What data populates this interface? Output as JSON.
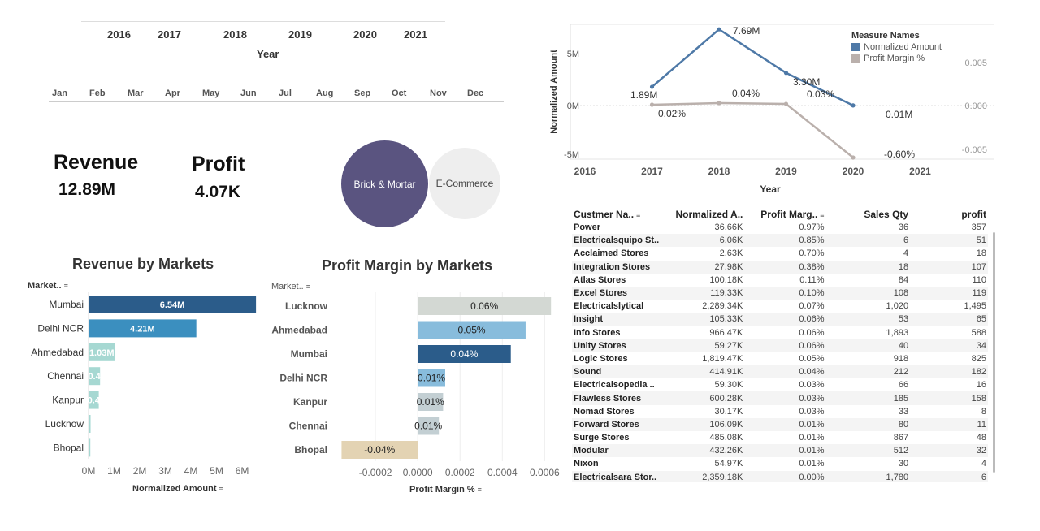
{
  "year_filter": {
    "years": [
      "2016",
      "2017",
      "2018",
      "2019",
      "2020",
      "2021"
    ],
    "title": "Year"
  },
  "month_filter": {
    "months": [
      "Jan",
      "Feb",
      "Mar",
      "Apr",
      "May",
      "Jun",
      "Jul",
      "Aug",
      "Sep",
      "Oct",
      "Nov",
      "Dec"
    ]
  },
  "kpis": {
    "revenue_label": "Revenue",
    "revenue_value": "12.89M",
    "profit_label": "Profit",
    "profit_value": "4.07K"
  },
  "channel_buttons": {
    "brick_mortar": "Brick & Mortar",
    "ecommerce": "E-Commerce"
  },
  "colors": {
    "dark_blue": "#2b5c8a",
    "mid_blue": "#3b8fbf",
    "teal_light": "#a6d8d2",
    "line_blue": "#4e79a7",
    "line_gray": "#bab0ac",
    "bubble_purple": "#5a5480",
    "bubble_gray": "#eeeeee"
  },
  "chart_data": [
    {
      "id": "trend",
      "type": "line",
      "x": [
        2017,
        2018,
        2019,
        2020
      ],
      "xlim": [
        2016,
        2021
      ],
      "xticks": [
        "2016",
        "2017",
        "2018",
        "2019",
        "2020",
        "2021"
      ],
      "xlabel": "Year",
      "ylabel": "Normalized Amount",
      "yticks": [
        "5M",
        "0M",
        "-5M"
      ],
      "y2ticks": [
        "0.005",
        "0.000",
        "-0.005"
      ],
      "legend_title": "Measure Names",
      "legend_position": "top-right",
      "series": [
        {
          "name": "Normalized Amount",
          "values": [
            1.89,
            7.69,
            3.3,
            0.01
          ],
          "labels": [
            "1.89M",
            "7.69M",
            "3.30M",
            "0.01M"
          ]
        },
        {
          "name": "Profit Margin %",
          "values": [
            0.02,
            0.04,
            0.03,
            -0.6
          ],
          "labels": [
            "0.02%",
            "0.04%",
            "0.03%",
            "-0.60%"
          ]
        }
      ]
    },
    {
      "id": "revenue_markets",
      "type": "bar",
      "orientation": "horizontal",
      "title": "Revenue by Markets",
      "dim_header": "Market..",
      "xlabel": "Normalized Amount",
      "categories": [
        "Mumbai",
        "Delhi NCR",
        "Ahmedabad",
        "Chennai",
        "Kanpur",
        "Lucknow",
        "Bhopal"
      ],
      "values": [
        6.54,
        4.21,
        1.03,
        0.45,
        0.4,
        0.08,
        0.07
      ],
      "labels": [
        "6.54M",
        "4.21M",
        "1.03M",
        "0.4",
        "0.4",
        "",
        ""
      ],
      "xlim": [
        0,
        6.6
      ],
      "xticks": [
        "0M",
        "1M",
        "2M",
        "3M",
        "4M",
        "5M",
        "6M"
      ]
    },
    {
      "id": "margin_markets",
      "type": "bar",
      "orientation": "horizontal",
      "title": "Profit Margin by Markets",
      "dim_header": "Market..",
      "xlabel": "Profit Margin %",
      "categories": [
        "Lucknow",
        "Ahmedabad",
        "Mumbai",
        "Delhi NCR",
        "Kanpur",
        "Chennai",
        "Bhopal"
      ],
      "values": [
        0.00063,
        0.00051,
        0.00044,
        0.00013,
        0.00012,
        0.0001,
        -0.00036
      ],
      "labels": [
        "0.06%",
        "0.05%",
        "0.04%",
        "0.01%",
        "0.01%",
        "0.01%",
        "-0.04%"
      ],
      "bar_colors": [
        "#d3d8d3",
        "#88bcdc",
        "#2b5c8a",
        "#88bcdc",
        "#c3cfd3",
        "#c3cfd3",
        "#e3d3b3"
      ],
      "xlim": [
        -0.0004,
        0.00066
      ],
      "xticks": [
        "-0.0002",
        "0.0000",
        "0.0002",
        "0.0004",
        "0.0006"
      ]
    }
  ],
  "customer_table": {
    "headers": [
      "Custmer Na..",
      "Normalized A..",
      "Profit Marg..",
      "Sales Qty",
      "profit"
    ],
    "rows": [
      [
        "Power",
        "36.66K",
        "0.97%",
        "36",
        "357"
      ],
      [
        "Electricalsquipo St..",
        "6.06K",
        "0.85%",
        "6",
        "51"
      ],
      [
        "Acclaimed Stores",
        "2.63K",
        "0.70%",
        "4",
        "18"
      ],
      [
        "Integration Stores",
        "27.98K",
        "0.38%",
        "18",
        "107"
      ],
      [
        "Atlas Stores",
        "100.18K",
        "0.11%",
        "84",
        "110"
      ],
      [
        "Excel Stores",
        "119.33K",
        "0.10%",
        "108",
        "119"
      ],
      [
        "Electricalslytical",
        "2,289.34K",
        "0.07%",
        "1,020",
        "1,495"
      ],
      [
        "Insight",
        "105.33K",
        "0.06%",
        "53",
        "65"
      ],
      [
        "Info Stores",
        "966.47K",
        "0.06%",
        "1,893",
        "588"
      ],
      [
        "Unity Stores",
        "59.27K",
        "0.06%",
        "40",
        "34"
      ],
      [
        "Logic Stores",
        "1,819.47K",
        "0.05%",
        "918",
        "825"
      ],
      [
        "Sound",
        "414.91K",
        "0.04%",
        "212",
        "182"
      ],
      [
        "Electricalsopedia ..",
        "59.30K",
        "0.03%",
        "66",
        "16"
      ],
      [
        "Flawless Stores",
        "600.28K",
        "0.03%",
        "185",
        "158"
      ],
      [
        "Nomad Stores",
        "30.17K",
        "0.03%",
        "33",
        "8"
      ],
      [
        "Forward Stores",
        "106.09K",
        "0.01%",
        "80",
        "11"
      ],
      [
        "Surge Stores",
        "485.08K",
        "0.01%",
        "867",
        "48"
      ],
      [
        "Modular",
        "432.26K",
        "0.01%",
        "512",
        "32"
      ],
      [
        "Nixon",
        "54.97K",
        "0.01%",
        "30",
        "4"
      ],
      [
        "Electricalsara Stor..",
        "2,359.18K",
        "0.00%",
        "1,780",
        "6"
      ]
    ]
  }
}
